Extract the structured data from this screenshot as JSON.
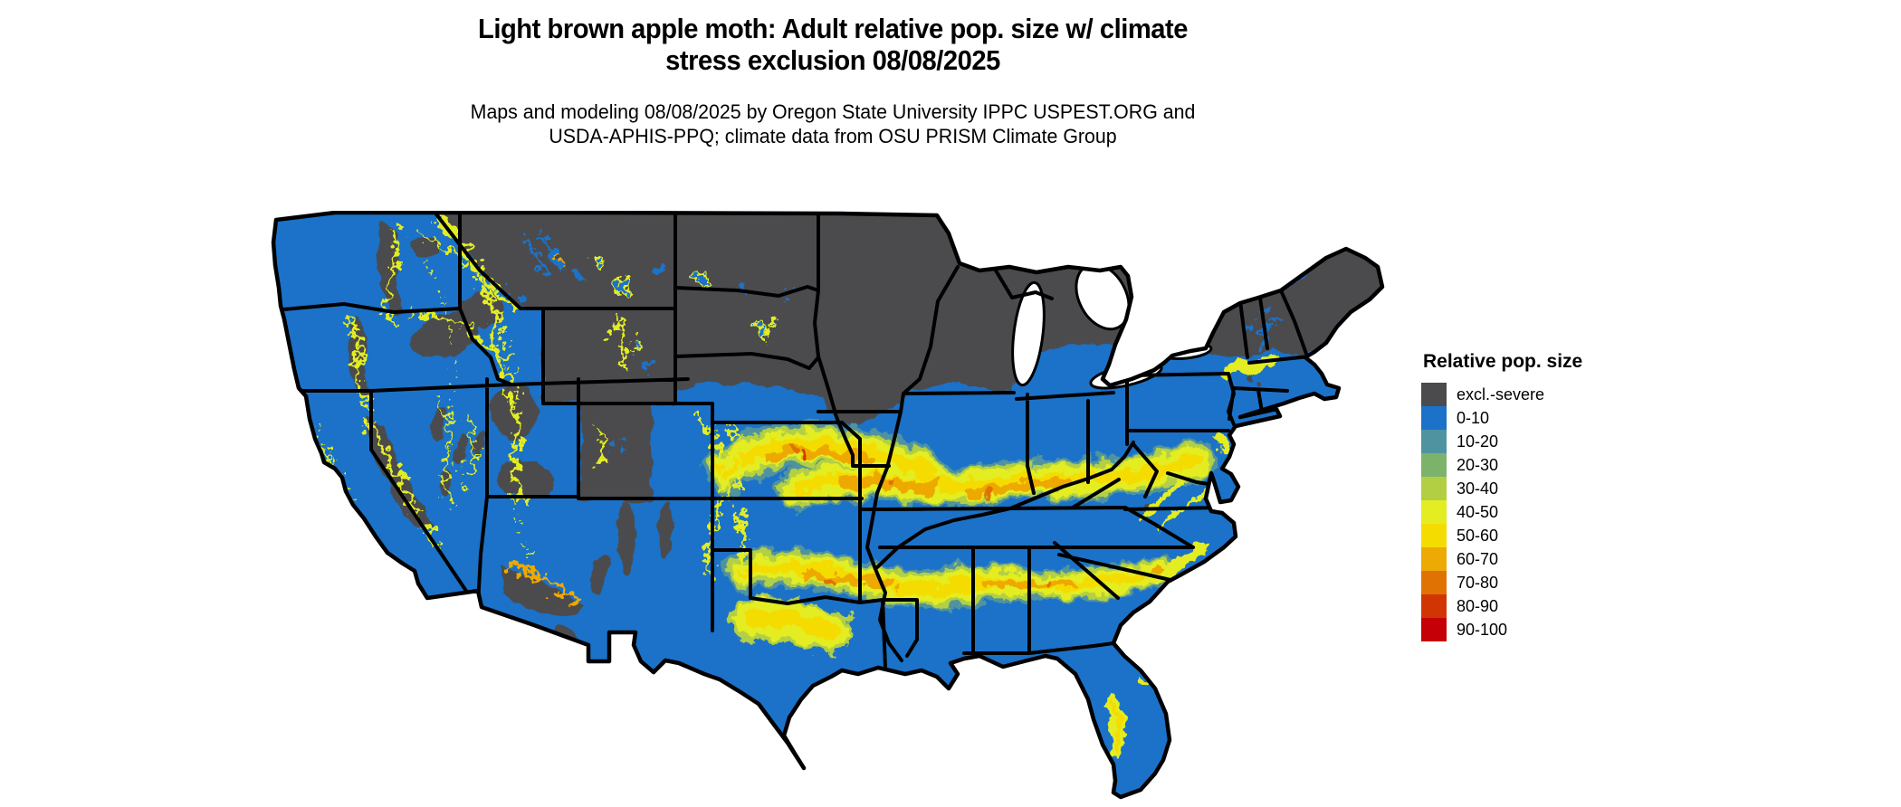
{
  "header": {
    "title_line1": "Light brown apple moth: Adult relative pop. size w/ climate",
    "title_line2": "stress exclusion 08/08/2025",
    "subtitle_line1": "Maps and modeling 08/08/2025 by Oregon State University IPPC USPEST.ORG and",
    "subtitle_line2": "USDA-APHIS-PPQ; climate data from OSU PRISM Climate Group"
  },
  "legend": {
    "title": "Relative pop. size",
    "items": [
      {
        "label": "excl.-severe",
        "color": "#4b4b4d"
      },
      {
        "label": "0-10",
        "color": "#1b72c8"
      },
      {
        "label": "10-20",
        "color": "#4f93a0"
      },
      {
        "label": "20-30",
        "color": "#7cb36b"
      },
      {
        "label": "30-40",
        "color": "#b2cf44"
      },
      {
        "label": "40-50",
        "color": "#e3ed21"
      },
      {
        "label": "50-60",
        "color": "#f5dc00"
      },
      {
        "label": "60-70",
        "color": "#eda904"
      },
      {
        "label": "70-80",
        "color": "#e07204"
      },
      {
        "label": "80-90",
        "color": "#d23504"
      },
      {
        "label": "90-100",
        "color": "#c50006"
      }
    ]
  },
  "map": {
    "region": "Continental United States",
    "base_color": "#1b72c8",
    "excluded_color": "#4b4b4d",
    "lake_color": "#ffffff",
    "boundary_color": "#000000",
    "gradient_colors": {
      "teal": "#4f93a0",
      "green": "#7cb36b",
      "yellow_green": "#b2cf44",
      "yellow": "#e3ed21",
      "gold": "#f5dc00",
      "amber": "#eda904",
      "orange": "#e07204",
      "red_orange": "#d23504",
      "red": "#c50006"
    }
  }
}
